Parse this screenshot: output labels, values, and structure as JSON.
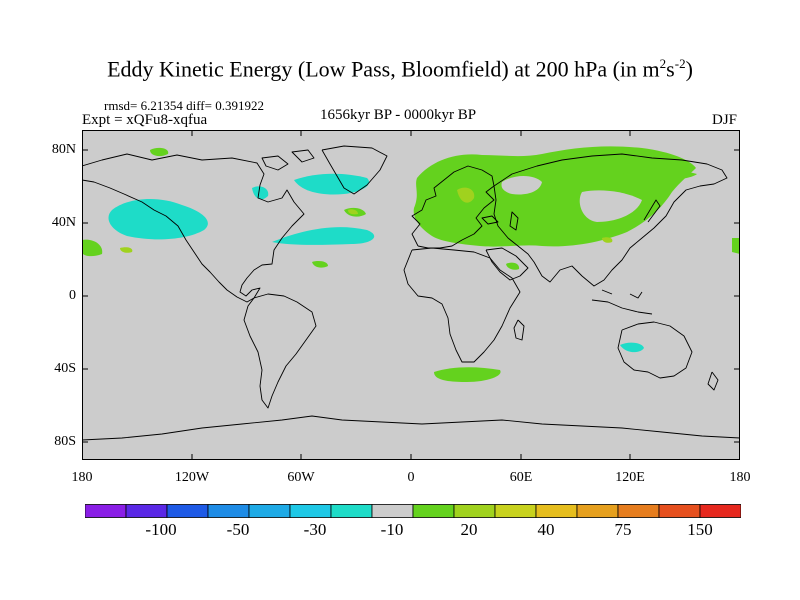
{
  "title_main": "Eddy Kinetic Energy (Low Pass, Bloomfield) at 200 hPa (in m",
  "title_sup1": "2",
  "title_mid": "s",
  "title_sup2": "-2",
  "title_end": ")",
  "stats": "rmsd= 6.21354 diff= 0.391922",
  "experiment": "Expt = xQFu8-xqfua",
  "period": "1656kyr BP - 0000kyr BP",
  "season": "DJF",
  "y_ticks": [
    "80N",
    "40N",
    "0",
    "40S",
    "80S"
  ],
  "x_ticks": [
    "180",
    "120W",
    "60W",
    "0",
    "60E",
    "120E",
    "180"
  ],
  "colorbar": {
    "colors": [
      "#8a1ee6",
      "#5a28e6",
      "#1e5ae6",
      "#1e8ce6",
      "#1eaae6",
      "#1ec8e6",
      "#1edcc8",
      "#cccccc",
      "#64d21e",
      "#a0d21e",
      "#c8d21e",
      "#e6be1e",
      "#e6a01e",
      "#e67d1e",
      "#e6501e",
      "#e6281e"
    ],
    "labels": [
      "-100",
      "-50",
      "-30",
      "-10",
      "20",
      "40",
      "75",
      "150"
    ]
  },
  "palette": {
    "background": "#cccccc",
    "cyan": "#1edcc8",
    "green": "#64d21e",
    "yellow_green": "#a0d21e",
    "coastline": "#000000"
  }
}
